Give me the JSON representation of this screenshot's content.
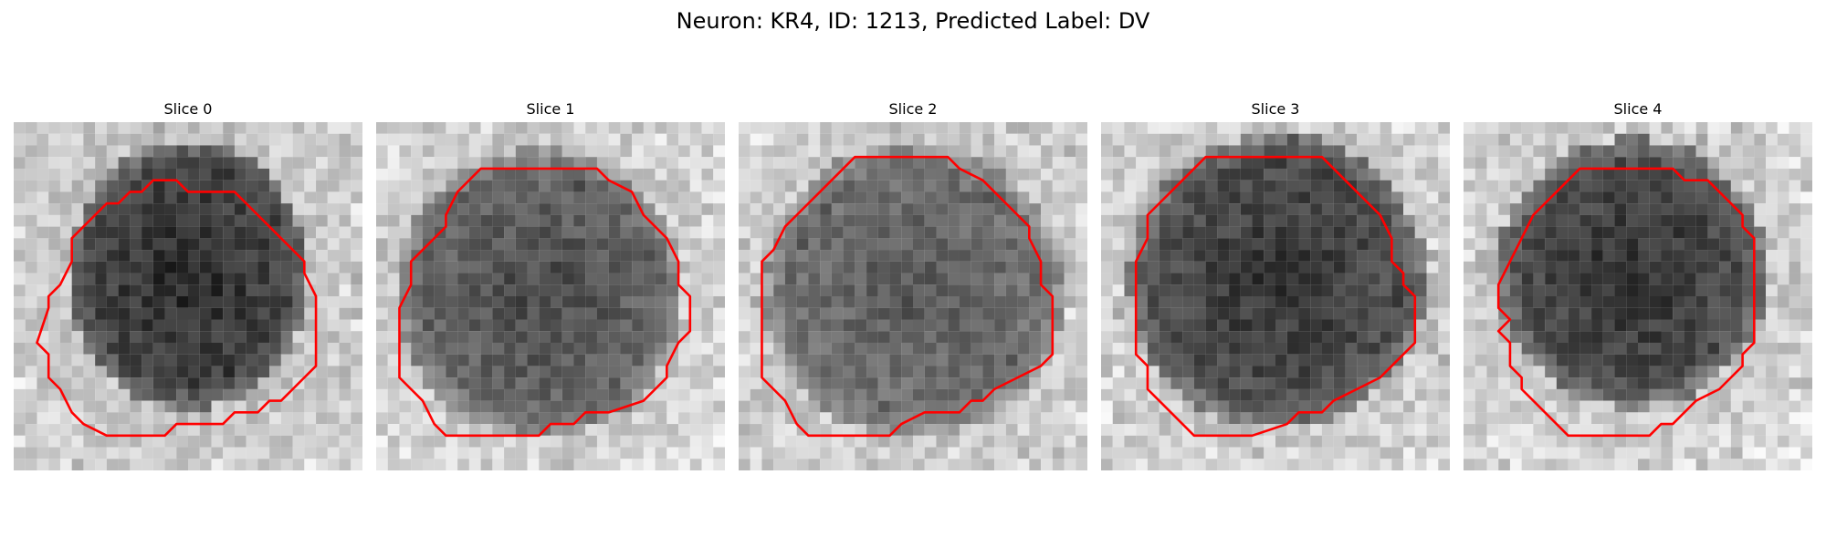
{
  "figure": {
    "title": "Neuron: KR4, ID: 1213, Predicted Label: DV"
  },
  "panels": [
    {
      "title": "Slice 0"
    },
    {
      "title": "Slice 1"
    },
    {
      "title": "Slice 2"
    },
    {
      "title": "Slice 3"
    },
    {
      "title": "Slice 4"
    }
  ],
  "colors": {
    "contour": "#ff0000",
    "background": "#ffffff"
  }
}
